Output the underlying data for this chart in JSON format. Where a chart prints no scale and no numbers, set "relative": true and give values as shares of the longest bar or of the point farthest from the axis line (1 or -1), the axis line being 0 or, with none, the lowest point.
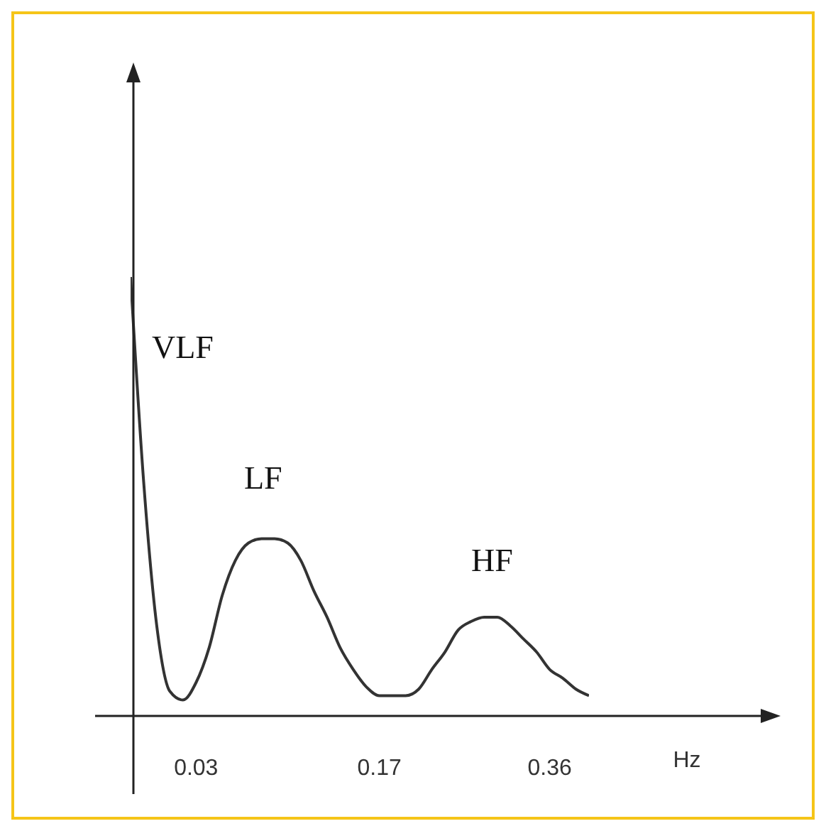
{
  "chart_data": {
    "type": "line",
    "relative": true,
    "xlabel": "Hz",
    "categories": [
      null,
      null,
      null,
      null,
      null,
      "0.03",
      null,
      null,
      null,
      null,
      null,
      null,
      null,
      null,
      null,
      null,
      null,
      null,
      null,
      "0.17",
      null,
      null,
      null,
      null,
      null,
      null,
      null,
      null,
      null,
      null,
      null,
      null,
      "0.36",
      null,
      null,
      null
    ],
    "series": [
      {
        "color": "#333333",
        "values": [
          1.0,
          0.53,
          0.2,
          0.05,
          0.03,
          0.07,
          0.15,
          0.27,
          0.35,
          0.39,
          0.4,
          0.4,
          0.39,
          0.35,
          0.28,
          0.22,
          0.15,
          0.1,
          0.06,
          0.04,
          0.04,
          0.04,
          0.055,
          0.1,
          0.14,
          0.19,
          0.21,
          0.22,
          0.22,
          0.2,
          0.17,
          0.14,
          0.1,
          0.08,
          0.055,
          0.04
        ]
      }
    ],
    "annotations": [
      "VLF",
      "LF",
      "HF"
    ],
    "marker": "none",
    "line_style": "solid",
    "grid": false,
    "legend": false
  }
}
